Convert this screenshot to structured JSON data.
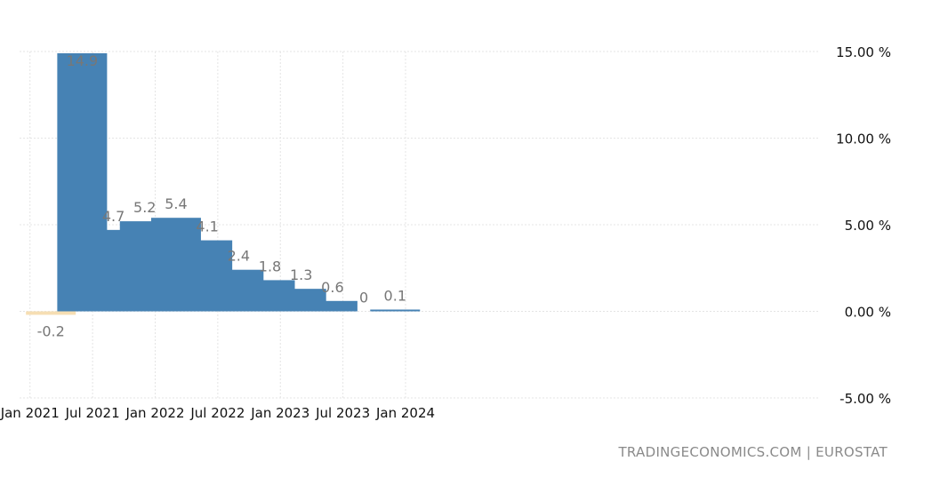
{
  "chart_data": {
    "type": "bar",
    "x": [
      "2021-03",
      "2021-06",
      "2021-09",
      "2021-12",
      "2022-03",
      "2022-06",
      "2022-09",
      "2022-12",
      "2023-03",
      "2023-06",
      "2023-09",
      "2023-12"
    ],
    "values": [
      -0.2,
      14.9,
      4.7,
      5.2,
      5.4,
      4.1,
      2.4,
      1.8,
      1.3,
      0.6,
      0,
      0.1
    ],
    "data_labels": [
      "-0.2",
      "14.9",
      "4.7",
      "5.2",
      "5.4",
      "4.1",
      "2.4",
      "1.8",
      "1.3",
      "0.6",
      "0",
      "0.1"
    ],
    "xlabel": "",
    "ylabel": "",
    "ylim": [
      -5,
      15
    ],
    "y_ticks": [
      {
        "value": 15,
        "label": "15.00 %"
      },
      {
        "value": 10,
        "label": "10.00 %"
      },
      {
        "value": 5,
        "label": "5.00 %"
      },
      {
        "value": 0,
        "label": "0.00 %"
      },
      {
        "value": -5,
        "label": "-5.00 %"
      }
    ],
    "x_ticks": [
      {
        "date": "2021-01",
        "label": "Jan 2021"
      },
      {
        "date": "2021-07",
        "label": "Jul 2021"
      },
      {
        "date": "2022-01",
        "label": "Jan 2022"
      },
      {
        "date": "2022-07",
        "label": "Jul 2022"
      },
      {
        "date": "2023-01",
        "label": "Jan 2023"
      },
      {
        "date": "2023-07",
        "label": "Jul 2023"
      },
      {
        "date": "2024-01",
        "label": "Jan 2024"
      }
    ],
    "grid": true,
    "y_axis_position": "right",
    "colors": {
      "positive": "#4682b4",
      "negative": "#f6deb3"
    }
  },
  "source": "TRADINGECONOMICS.COM | EUROSTAT"
}
